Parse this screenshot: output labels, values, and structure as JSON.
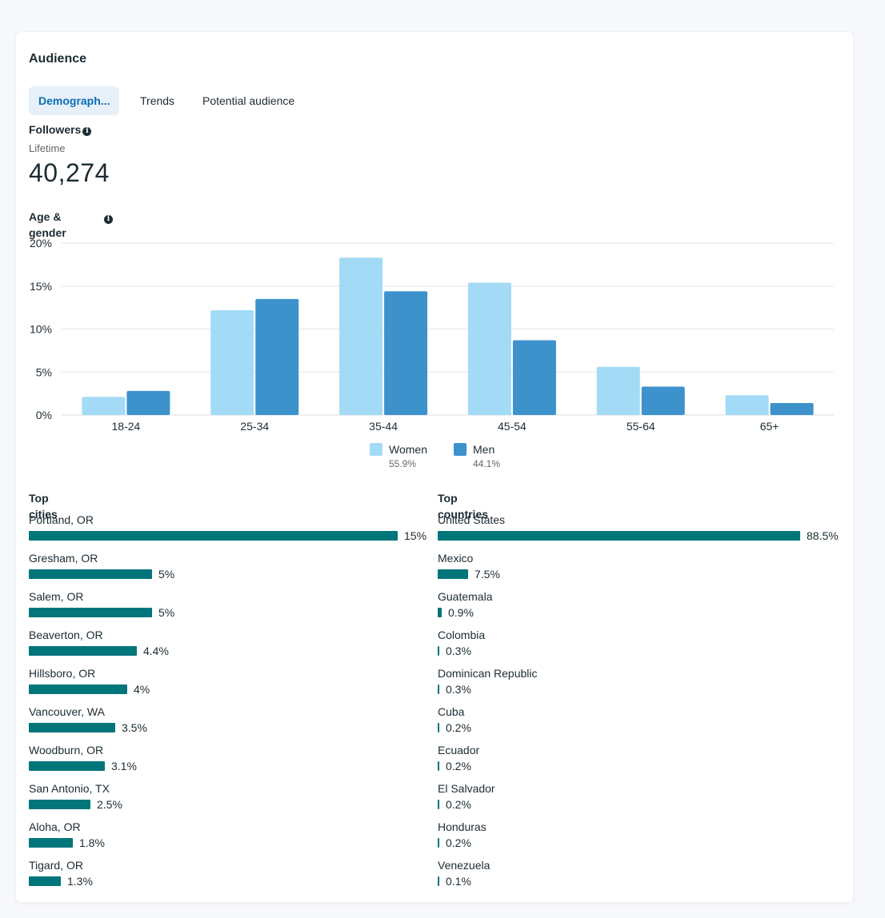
{
  "header": {
    "title": "Audience"
  },
  "tabs": [
    {
      "label": "Demograph...",
      "active": true
    },
    {
      "label": "Trends",
      "active": false
    },
    {
      "label": "Potential audience",
      "active": false
    }
  ],
  "followers": {
    "label": "Followers",
    "period": "Lifetime",
    "value": "40,274"
  },
  "age_gender": {
    "label": "Age & gender",
    "legend": [
      {
        "name": "Women",
        "pct": "55.9%",
        "color": "#a3daf6"
      },
      {
        "name": "Men",
        "pct": "44.1%",
        "color": "#3d92cc"
      }
    ]
  },
  "top_cities": {
    "label": "Top cities",
    "items": [
      {
        "name": "Portland, OR",
        "value": 15,
        "display": "15%"
      },
      {
        "name": "Gresham, OR",
        "value": 5,
        "display": "5%"
      },
      {
        "name": "Salem, OR",
        "value": 5,
        "display": "5%"
      },
      {
        "name": "Beaverton, OR",
        "value": 4.4,
        "display": "4.4%"
      },
      {
        "name": "Hillsboro, OR",
        "value": 4,
        "display": "4%"
      },
      {
        "name": "Vancouver, WA",
        "value": 3.5,
        "display": "3.5%"
      },
      {
        "name": "Woodburn, OR",
        "value": 3.1,
        "display": "3.1%"
      },
      {
        "name": "San Antonio, TX",
        "value": 2.5,
        "display": "2.5%"
      },
      {
        "name": "Aloha, OR",
        "value": 1.8,
        "display": "1.8%"
      },
      {
        "name": "Tigard, OR",
        "value": 1.3,
        "display": "1.3%"
      }
    ]
  },
  "top_countries": {
    "label": "Top countries",
    "items": [
      {
        "name": "United States",
        "value": 88.5,
        "display": "88.5%"
      },
      {
        "name": "Mexico",
        "value": 7.5,
        "display": "7.5%"
      },
      {
        "name": "Guatemala",
        "value": 0.9,
        "display": "0.9%"
      },
      {
        "name": "Colombia",
        "value": 0.3,
        "display": "0.3%"
      },
      {
        "name": "Dominican Republic",
        "value": 0.3,
        "display": "0.3%"
      },
      {
        "name": "Cuba",
        "value": 0.2,
        "display": "0.2%"
      },
      {
        "name": "Ecuador",
        "value": 0.2,
        "display": "0.2%"
      },
      {
        "name": "El Salvador",
        "value": 0.2,
        "display": "0.2%"
      },
      {
        "name": "Honduras",
        "value": 0.2,
        "display": "0.2%"
      },
      {
        "name": "Venezuela",
        "value": 0.1,
        "display": "0.1%"
      }
    ]
  },
  "chart_data": {
    "type": "bar",
    "categories": [
      "18-24",
      "25-34",
      "35-44",
      "45-54",
      "55-64",
      "65+"
    ],
    "series": [
      {
        "name": "Women",
        "values": [
          2.1,
          12.2,
          18.3,
          15.4,
          5.6,
          2.3
        ]
      },
      {
        "name": "Men",
        "values": [
          2.8,
          13.5,
          14.4,
          8.7,
          3.3,
          1.4
        ]
      }
    ],
    "yticks": [
      "0%",
      "5%",
      "10%",
      "15%",
      "20%"
    ],
    "ylim": [
      0,
      20
    ],
    "grid": true,
    "legend": "bottom",
    "colors": {
      "Women": "#a3daf6",
      "Men": "#3d92cc"
    }
  }
}
